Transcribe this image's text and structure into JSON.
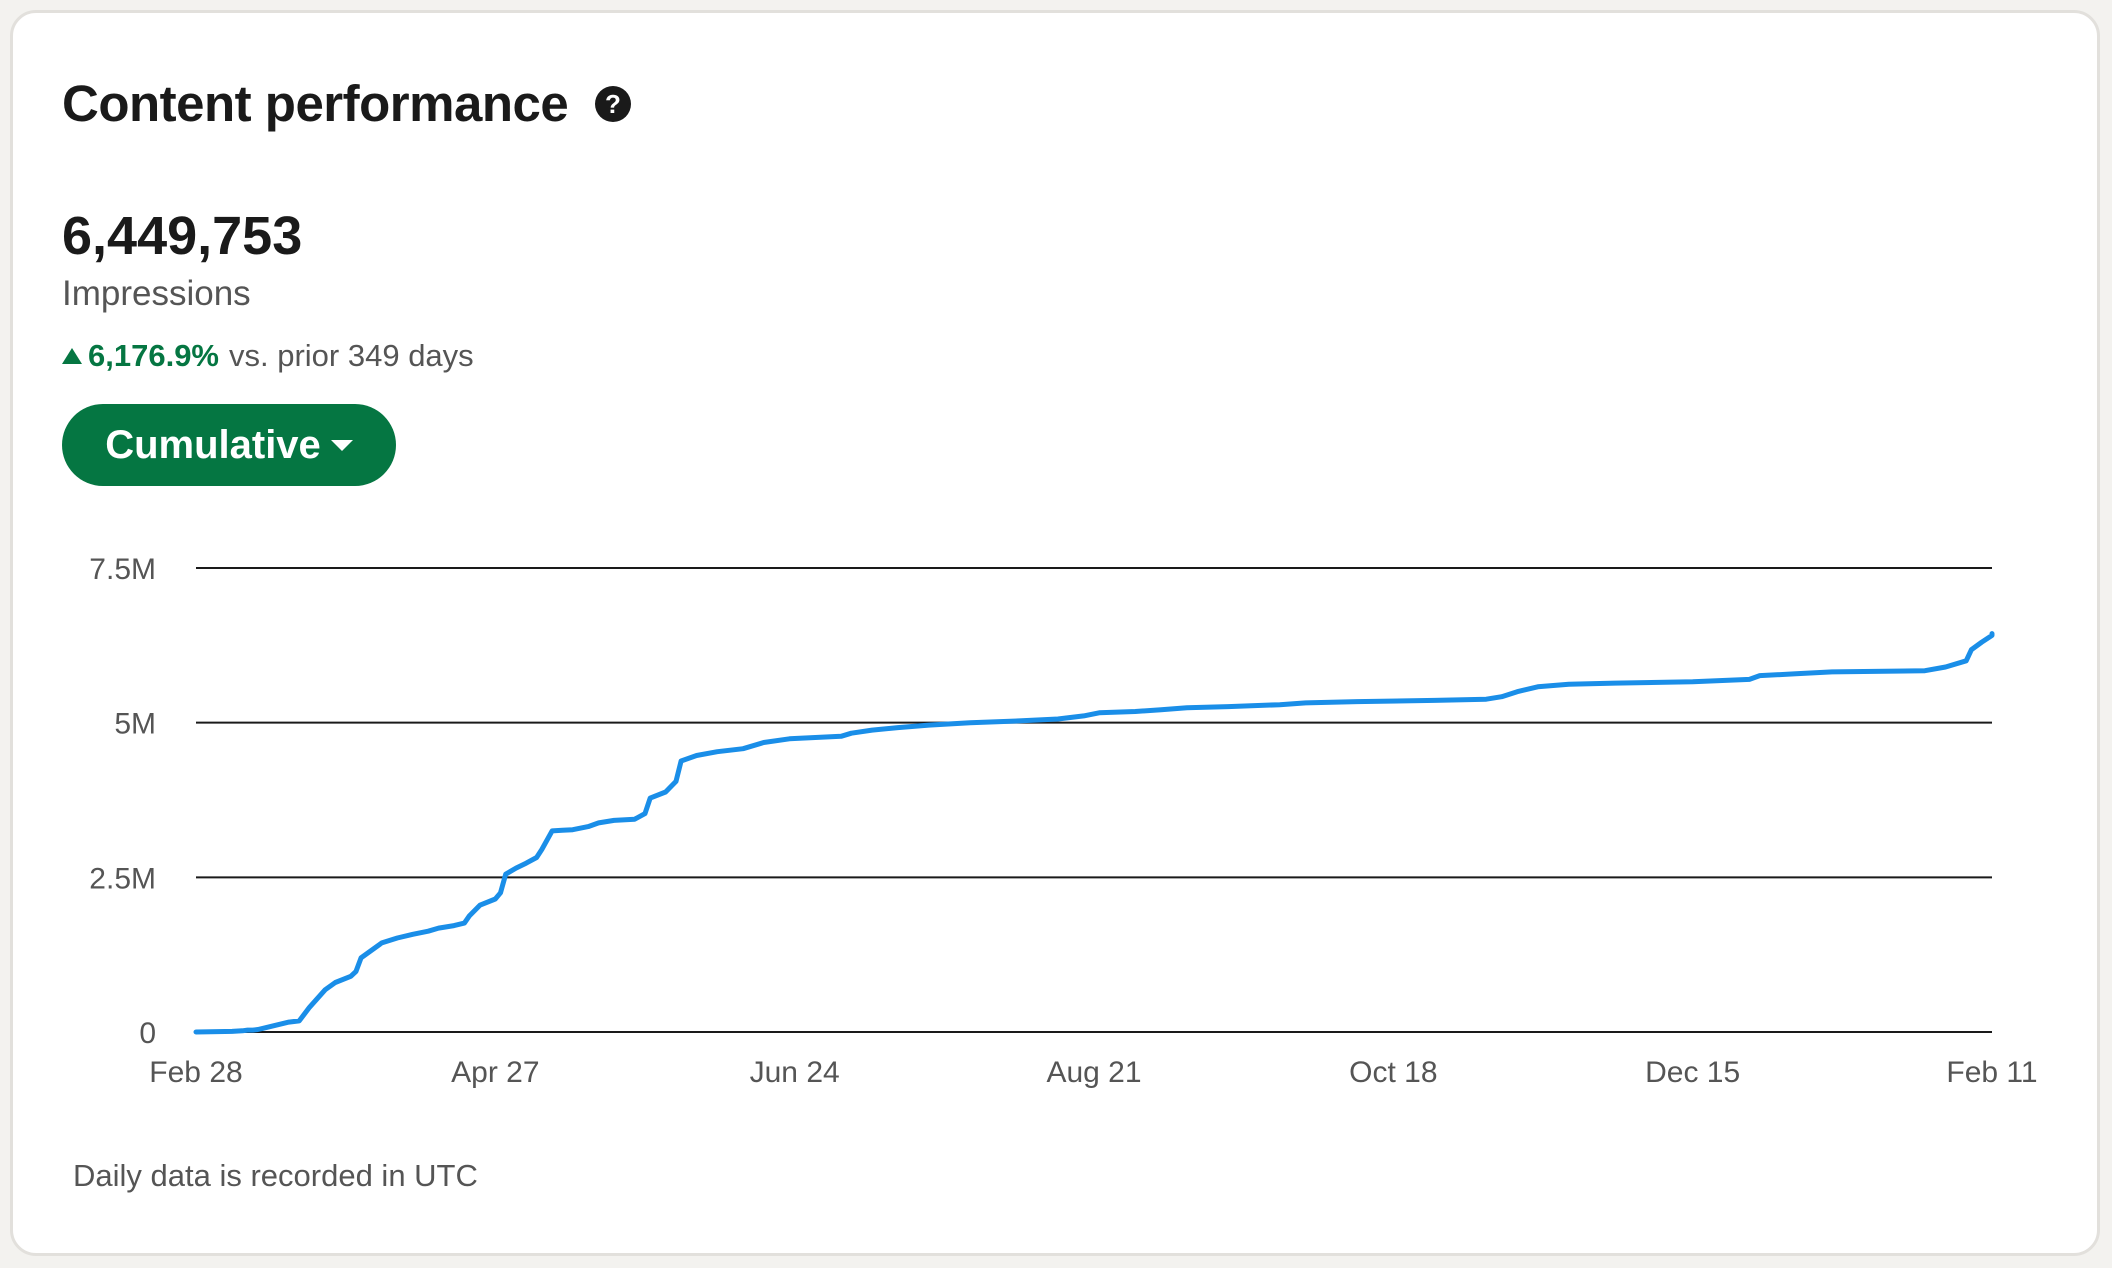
{
  "card": {
    "title": "Content performance",
    "help_icon": "question-circle-icon",
    "metric_value": "6,449,753",
    "metric_label": "Impressions",
    "change_icon": "triangle-up-icon",
    "change_pct": "6,176.9%",
    "change_text": "vs. prior 349 days",
    "mode_button_label": "Cumulative",
    "footnote": "Daily data is recorded in UTC"
  },
  "colors": {
    "accent_green": "#057642",
    "line_blue": "#1a8ee8",
    "grid": "#1a1a1a",
    "text_muted": "#555555"
  },
  "chart_data": {
    "type": "line",
    "title": "",
    "xlabel": "",
    "ylabel": "",
    "x_tick_labels": [
      "Feb 28",
      "Apr 27",
      "Jun 24",
      "Aug 21",
      "Oct 18",
      "Dec 15",
      "Feb 11"
    ],
    "y_tick_labels": [
      "0",
      "2.5M",
      "5M",
      "7.5M"
    ],
    "y_tick_values": [
      0,
      2500000,
      5000000,
      7500000
    ],
    "ylim": [
      0,
      7500000
    ],
    "x_axis": "days since Feb 28 (Feb 11 = day 348)",
    "grid": true,
    "series": [
      {
        "name": "Impressions",
        "points": [
          [
            0,
            0
          ],
          [
            7,
            10000
          ],
          [
            9,
            20000
          ],
          [
            10,
            30000
          ],
          [
            11,
            30000
          ],
          [
            12,
            40000
          ],
          [
            13,
            60000
          ],
          [
            15,
            100000
          ],
          [
            18,
            160000
          ],
          [
            20,
            180000
          ],
          [
            22,
            400000
          ],
          [
            25,
            680000
          ],
          [
            27,
            800000
          ],
          [
            30,
            900000
          ],
          [
            31,
            980000
          ],
          [
            32,
            1200000
          ],
          [
            34,
            1320000
          ],
          [
            36,
            1440000
          ],
          [
            39,
            1520000
          ],
          [
            42,
            1580000
          ],
          [
            45,
            1630000
          ],
          [
            47,
            1680000
          ],
          [
            50,
            1720000
          ],
          [
            52,
            1760000
          ],
          [
            53,
            1880000
          ],
          [
            55,
            2050000
          ],
          [
            58,
            2150000
          ],
          [
            59,
            2250000
          ],
          [
            60,
            2550000
          ],
          [
            62,
            2650000
          ],
          [
            64,
            2730000
          ],
          [
            66,
            2820000
          ],
          [
            67,
            2950000
          ],
          [
            69,
            3250000
          ],
          [
            71,
            3260000
          ],
          [
            73,
            3270000
          ],
          [
            76,
            3320000
          ],
          [
            78,
            3380000
          ],
          [
            81,
            3420000
          ],
          [
            85,
            3440000
          ],
          [
            87,
            3530000
          ],
          [
            88,
            3780000
          ],
          [
            91,
            3880000
          ],
          [
            93,
            4050000
          ],
          [
            94,
            4380000
          ],
          [
            97,
            4470000
          ],
          [
            101,
            4530000
          ],
          [
            106,
            4580000
          ],
          [
            110,
            4680000
          ],
          [
            115,
            4740000
          ],
          [
            120,
            4760000
          ],
          [
            125,
            4780000
          ],
          [
            127,
            4830000
          ],
          [
            131,
            4880000
          ],
          [
            136,
            4920000
          ],
          [
            142,
            4960000
          ],
          [
            150,
            5000000
          ],
          [
            160,
            5030000
          ],
          [
            167,
            5060000
          ],
          [
            172,
            5110000
          ],
          [
            175,
            5160000
          ],
          [
            182,
            5180000
          ],
          [
            187,
            5210000
          ],
          [
            192,
            5240000
          ],
          [
            200,
            5260000
          ],
          [
            210,
            5290000
          ],
          [
            215,
            5320000
          ],
          [
            225,
            5340000
          ],
          [
            240,
            5360000
          ],
          [
            250,
            5380000
          ],
          [
            253,
            5420000
          ],
          [
            256,
            5500000
          ],
          [
            260,
            5580000
          ],
          [
            266,
            5620000
          ],
          [
            275,
            5640000
          ],
          [
            290,
            5660000
          ],
          [
            301,
            5700000
          ],
          [
            303,
            5760000
          ],
          [
            310,
            5790000
          ],
          [
            317,
            5820000
          ],
          [
            335,
            5840000
          ],
          [
            339,
            5900000
          ],
          [
            343,
            6000000
          ],
          [
            344,
            6180000
          ],
          [
            346,
            6300000
          ],
          [
            348,
            6410000
          ],
          [
            350,
            6430000
          ],
          [
            356,
            6440000
          ]
        ]
      }
    ]
  }
}
